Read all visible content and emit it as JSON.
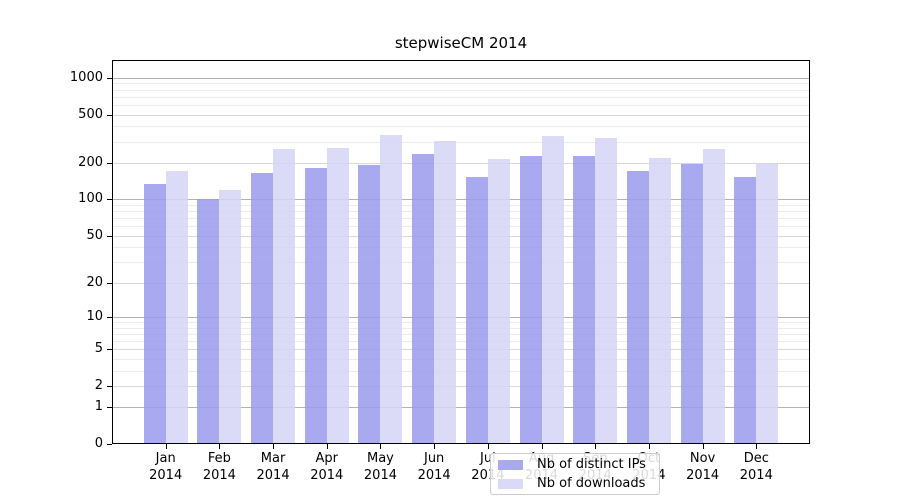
{
  "chart_data": {
    "type": "bar",
    "title": "stepwiseCM 2014",
    "year_label": "2014",
    "categories": [
      "Jan",
      "Feb",
      "Mar",
      "Apr",
      "May",
      "Jun",
      "Jul",
      "Aug",
      "Sep",
      "Oct",
      "Nov",
      "Dec"
    ],
    "series": [
      {
        "name": "Nb of distinct IPs",
        "swatch": "#a9a9ee",
        "fill": "rgba(154,154,236,0.85)",
        "values": [
          134,
          100,
          166,
          182,
          193,
          237,
          154,
          229,
          229,
          170,
          197,
          154
        ]
      },
      {
        "name": "Nb of downloads",
        "swatch": "#dadaf8",
        "fill": "rgba(213,213,246,0.85)",
        "values": [
          172,
          120,
          261,
          266,
          341,
          302,
          216,
          334,
          322,
          221,
          262,
          200
        ]
      }
    ],
    "yscale": "log10(1+y)",
    "y_ticks": [
      0,
      1,
      2,
      5,
      10,
      20,
      50,
      100,
      200,
      500,
      1000
    ],
    "ylim": [
      0,
      1400
    ],
    "grid": true,
    "legend_position": "inside-bottom-center",
    "colors": {
      "grid_major": "#b3b3b3",
      "grid_mid": "#d8d8d8",
      "grid_minor": "#ececec",
      "axis": "#000000",
      "legend_border": "#cccccc"
    }
  }
}
